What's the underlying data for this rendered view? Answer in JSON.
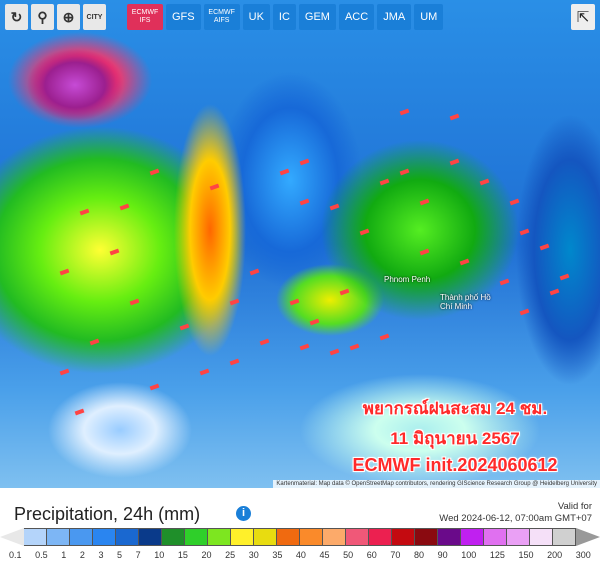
{
  "toolbar": {
    "tools": [
      {
        "icon": "refresh-icon",
        "glyph": "↻"
      },
      {
        "icon": "location-pin-icon",
        "glyph": "⚲"
      },
      {
        "icon": "zoom-in-icon",
        "glyph": "⊕"
      },
      {
        "icon": "city-toggle-icon",
        "glyph": "CITY"
      }
    ],
    "models": [
      "ECMWF IFS",
      "GFS",
      "ECMWF AIFS",
      "UK",
      "IC",
      "GEM",
      "ACC",
      "JMA",
      "UM"
    ],
    "active_model": "ECMWF IFS",
    "share_icon": "share-icon"
  },
  "map": {
    "places": [
      "Phnom Penh",
      "Thành phố Hồ Chí Minh"
    ],
    "overlay": [
      "พยากรณ์ฝนสะสม 24 ชม.",
      "11 มิถุนายน 2567",
      "ECMWF init.2024060612"
    ],
    "attribution": "Kartenmaterial: Map data © OpenStreetMap contributors, rendering GIScience Research Group @ Heidelberg University"
  },
  "legend": {
    "title": "Precipitation, 24h (mm)",
    "valid_label": "Valid for",
    "valid_time": "Wed 2024-06-12, 07:00am GMT+07",
    "ticks": [
      "0.1",
      "0.5",
      "1",
      "2",
      "3",
      "5",
      "7",
      "10",
      "15",
      "20",
      "25",
      "30",
      "35",
      "40",
      "45",
      "50",
      "60",
      "70",
      "80",
      "90",
      "100",
      "125",
      "150",
      "200",
      "300"
    ],
    "colors": [
      "#b4d4fa",
      "#7db6f5",
      "#4a98f0",
      "#2a85f0",
      "#1a68d0",
      "#0a3a8a",
      "#1f8f2a",
      "#2fcf2a",
      "#7de620",
      "#fff02a",
      "#e8dc10",
      "#f06a10",
      "#fa8a2a",
      "#fcaa6a",
      "#f05878",
      "#ec2050",
      "#c40a10",
      "#8a0a10",
      "#6a0a8a",
      "#c020f0",
      "#e070f0",
      "#eaa0f5",
      "#f5e0f8",
      "#d0d0d0"
    ]
  }
}
